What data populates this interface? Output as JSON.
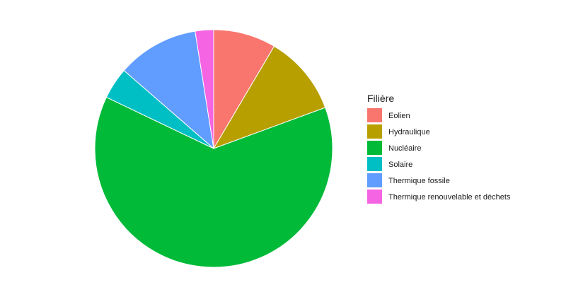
{
  "chart_data": {
    "type": "pie",
    "legend": {
      "title": "Filière",
      "position": "right"
    },
    "series": [
      {
        "name": "Eolien",
        "value": 8.5,
        "color": "#F8766D"
      },
      {
        "name": "Hydraulique",
        "value": 10.9,
        "color": "#B79F00"
      },
      {
        "name": "Nucléaire",
        "value": 62.7,
        "color": "#00BA38"
      },
      {
        "name": "Solaire",
        "value": 4.3,
        "color": "#00BFC4"
      },
      {
        "name": "Thermique fossile",
        "value": 11.1,
        "color": "#619CFF"
      },
      {
        "name": "Thermique renouvelable et déchets",
        "value": 2.5,
        "color": "#F564E3"
      }
    ],
    "start_angle_deg": 0,
    "direction": "clockwise",
    "grid": false
  }
}
